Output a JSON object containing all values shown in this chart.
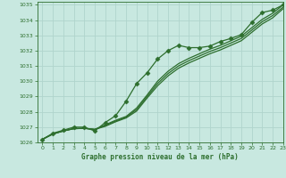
{
  "bg_color": "#c8e8e0",
  "grid_color": "#b0d4cc",
  "line_color": "#2d6e2d",
  "title": "Graphe pression niveau de la mer (hPa)",
  "xlim": [
    -0.5,
    23
  ],
  "ylim": [
    1026,
    1035.2
  ],
  "xticks": [
    0,
    1,
    2,
    3,
    4,
    5,
    6,
    7,
    8,
    9,
    10,
    11,
    12,
    13,
    14,
    15,
    16,
    17,
    18,
    19,
    20,
    21,
    22,
    23
  ],
  "yticks": [
    1026,
    1027,
    1028,
    1029,
    1030,
    1031,
    1032,
    1033,
    1034,
    1035
  ],
  "x": [
    0,
    1,
    2,
    3,
    4,
    5,
    6,
    7,
    8,
    9,
    10,
    11,
    12,
    13,
    14,
    15,
    16,
    17,
    18,
    19,
    20,
    21,
    22,
    23
  ],
  "smooth_line1": [
    1026.2,
    1026.55,
    1026.75,
    1026.9,
    1026.92,
    1026.85,
    1027.05,
    1027.35,
    1027.6,
    1028.05,
    1028.9,
    1029.7,
    1030.35,
    1030.85,
    1031.2,
    1031.5,
    1031.8,
    1032.05,
    1032.35,
    1032.65,
    1033.2,
    1033.75,
    1034.15,
    1034.75
  ],
  "smooth_line2": [
    1026.2,
    1026.55,
    1026.75,
    1026.9,
    1026.92,
    1026.85,
    1027.1,
    1027.4,
    1027.65,
    1028.15,
    1029.0,
    1029.85,
    1030.5,
    1031.0,
    1031.35,
    1031.65,
    1031.95,
    1032.2,
    1032.5,
    1032.8,
    1033.35,
    1033.9,
    1034.3,
    1034.85
  ],
  "smooth_line3": [
    1026.2,
    1026.55,
    1026.75,
    1026.9,
    1026.92,
    1026.85,
    1027.15,
    1027.45,
    1027.7,
    1028.25,
    1029.1,
    1030.0,
    1030.65,
    1031.15,
    1031.5,
    1031.8,
    1032.1,
    1032.35,
    1032.65,
    1032.95,
    1033.5,
    1034.05,
    1034.45,
    1035.0
  ],
  "marked_line": [
    1026.2,
    1026.6,
    1026.8,
    1027.0,
    1027.0,
    1026.75,
    1027.3,
    1027.75,
    1028.7,
    1029.85,
    1030.55,
    1031.45,
    1032.0,
    1032.35,
    1032.2,
    1032.2,
    1032.3,
    1032.6,
    1032.8,
    1033.05,
    1033.85,
    1034.5,
    1034.65,
    1035.0
  ]
}
